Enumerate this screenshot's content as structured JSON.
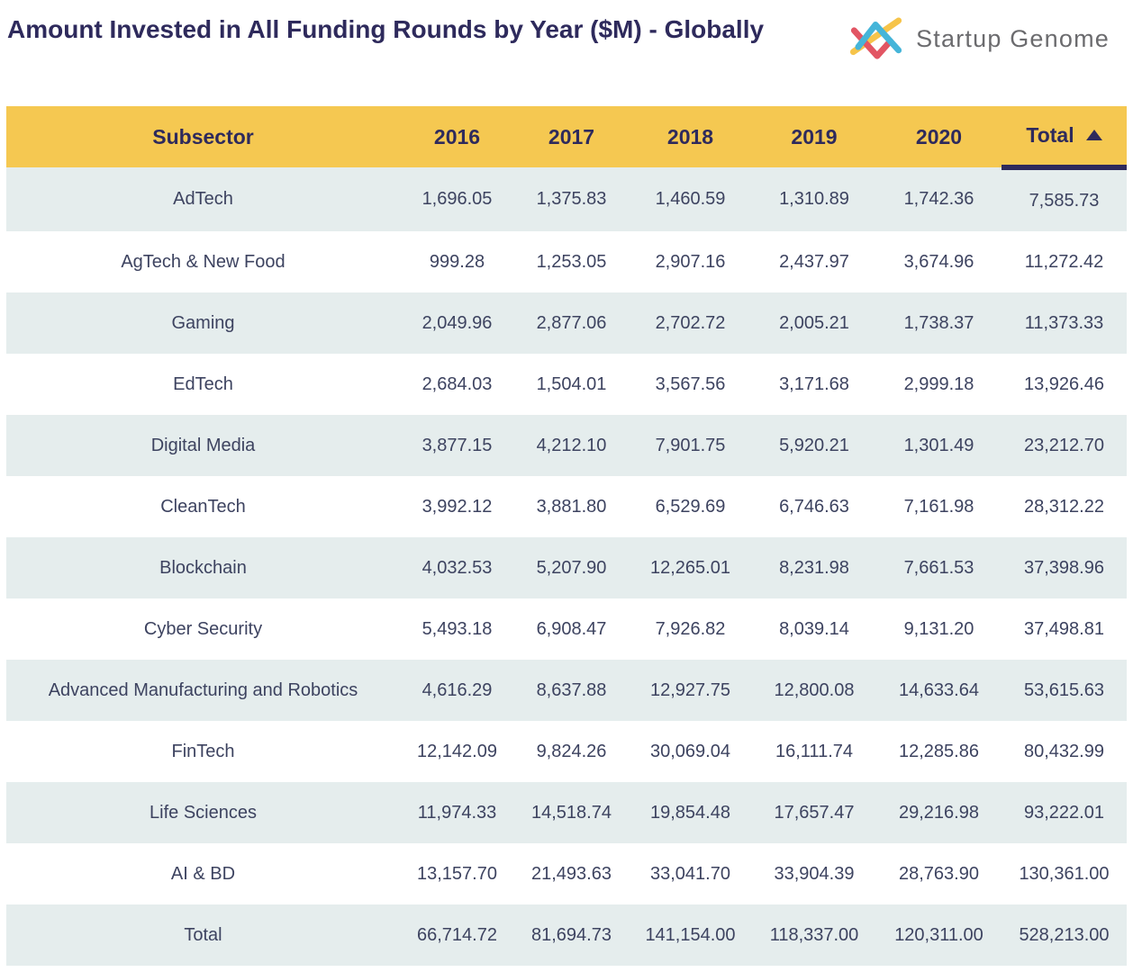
{
  "page": {
    "title": "Amount Invested in All Funding Rounds by Year ($M) - Globally"
  },
  "logo": {
    "text": "Startup Genome",
    "mark_colors": {
      "red": "#E25563",
      "blue": "#45B5D9",
      "yellow": "#F6C44A"
    },
    "text_color": "#6B6B6E"
  },
  "colors": {
    "title_text": "#2E2A5C",
    "header_bg": "#F5C851",
    "header_text": "#2E2A5C",
    "stripe_row_bg": "#E5EDED",
    "plain_row_bg": "#FFFFFF",
    "cell_text": "#3D4360",
    "sort_underline": "#2E2A5C"
  },
  "table": {
    "columns": [
      "Subsector",
      "2016",
      "2017",
      "2018",
      "2019",
      "2020",
      "Total"
    ],
    "sort": {
      "column": "Total",
      "direction": "ascending",
      "icon": "triangle-up"
    },
    "rows": [
      [
        "AdTech",
        "1,696.05",
        "1,375.83",
        "1,460.59",
        "1,310.89",
        "1,742.36",
        "7,585.73"
      ],
      [
        "AgTech & New Food",
        "999.28",
        "1,253.05",
        "2,907.16",
        "2,437.97",
        "3,674.96",
        "11,272.42"
      ],
      [
        "Gaming",
        "2,049.96",
        "2,877.06",
        "2,702.72",
        "2,005.21",
        "1,738.37",
        "11,373.33"
      ],
      [
        "EdTech",
        "2,684.03",
        "1,504.01",
        "3,567.56",
        "3,171.68",
        "2,999.18",
        "13,926.46"
      ],
      [
        "Digital Media",
        "3,877.15",
        "4,212.10",
        "7,901.75",
        "5,920.21",
        "1,301.49",
        "23,212.70"
      ],
      [
        "CleanTech",
        "3,992.12",
        "3,881.80",
        "6,529.69",
        "6,746.63",
        "7,161.98",
        "28,312.22"
      ],
      [
        "Blockchain",
        "4,032.53",
        "5,207.90",
        "12,265.01",
        "8,231.98",
        "7,661.53",
        "37,398.96"
      ],
      [
        "Cyber Security",
        "5,493.18",
        "6,908.47",
        "7,926.82",
        "8,039.14",
        "9,131.20",
        "37,498.81"
      ],
      [
        "Advanced Manufacturing and Robotics",
        "4,616.29",
        "8,637.88",
        "12,927.75",
        "12,800.08",
        "14,633.64",
        "53,615.63"
      ],
      [
        "FinTech",
        "12,142.09",
        "9,824.26",
        "30,069.04",
        "16,111.74",
        "12,285.86",
        "80,432.99"
      ],
      [
        "Life Sciences",
        "11,974.33",
        "14,518.74",
        "19,854.48",
        "17,657.47",
        "29,216.98",
        "93,222.01"
      ],
      [
        "AI & BD",
        "13,157.70",
        "21,493.63",
        "33,041.70",
        "33,904.39",
        "28,763.90",
        "130,361.00"
      ]
    ],
    "footer": [
      "Total",
      "66,714.72",
      "81,694.73",
      "141,154.00",
      "118,337.00",
      "120,311.00",
      "528,213.00"
    ]
  },
  "chart_data": {
    "type": "table",
    "title": "Amount Invested in All Funding Rounds by Year ($M) - Globally",
    "unit": "USD millions",
    "columns": [
      "2016",
      "2017",
      "2018",
      "2019",
      "2020"
    ],
    "sorted_by": "Total ascending",
    "rows": [
      {
        "subsector": "AdTech",
        "values": [
          1696.05,
          1375.83,
          1460.59,
          1310.89,
          1742.36
        ],
        "total": 7585.73
      },
      {
        "subsector": "AgTech & New Food",
        "values": [
          999.28,
          1253.05,
          2907.16,
          2437.97,
          3674.96
        ],
        "total": 11272.42
      },
      {
        "subsector": "Gaming",
        "values": [
          2049.96,
          2877.06,
          2702.72,
          2005.21,
          1738.37
        ],
        "total": 11373.33
      },
      {
        "subsector": "EdTech",
        "values": [
          2684.03,
          1504.01,
          3567.56,
          3171.68,
          2999.18
        ],
        "total": 13926.46
      },
      {
        "subsector": "Digital Media",
        "values": [
          3877.15,
          4212.1,
          7901.75,
          5920.21,
          1301.49
        ],
        "total": 23212.7
      },
      {
        "subsector": "CleanTech",
        "values": [
          3992.12,
          3881.8,
          6529.69,
          6746.63,
          7161.98
        ],
        "total": 28312.22
      },
      {
        "subsector": "Blockchain",
        "values": [
          4032.53,
          5207.9,
          12265.01,
          8231.98,
          7661.53
        ],
        "total": 37398.96
      },
      {
        "subsector": "Cyber Security",
        "values": [
          5493.18,
          6908.47,
          7926.82,
          8039.14,
          9131.2
        ],
        "total": 37498.81
      },
      {
        "subsector": "Advanced Manufacturing and Robotics",
        "values": [
          4616.29,
          8637.88,
          12927.75,
          12800.08,
          14633.64
        ],
        "total": 53615.63
      },
      {
        "subsector": "FinTech",
        "values": [
          12142.09,
          9824.26,
          30069.04,
          16111.74,
          12285.86
        ],
        "total": 80432.99
      },
      {
        "subsector": "Life Sciences",
        "values": [
          11974.33,
          14518.74,
          19854.48,
          17657.47,
          29216.98
        ],
        "total": 93222.01
      },
      {
        "subsector": "AI & BD",
        "values": [
          13157.7,
          21493.63,
          33041.7,
          33904.39,
          28763.9
        ],
        "total": 130361.0
      }
    ],
    "column_totals": {
      "2016": 66714.72,
      "2017": 81694.73,
      "2018": 141154.0,
      "2019": 118337.0,
      "2020": 120311.0,
      "grand_total": 528213.0
    }
  }
}
